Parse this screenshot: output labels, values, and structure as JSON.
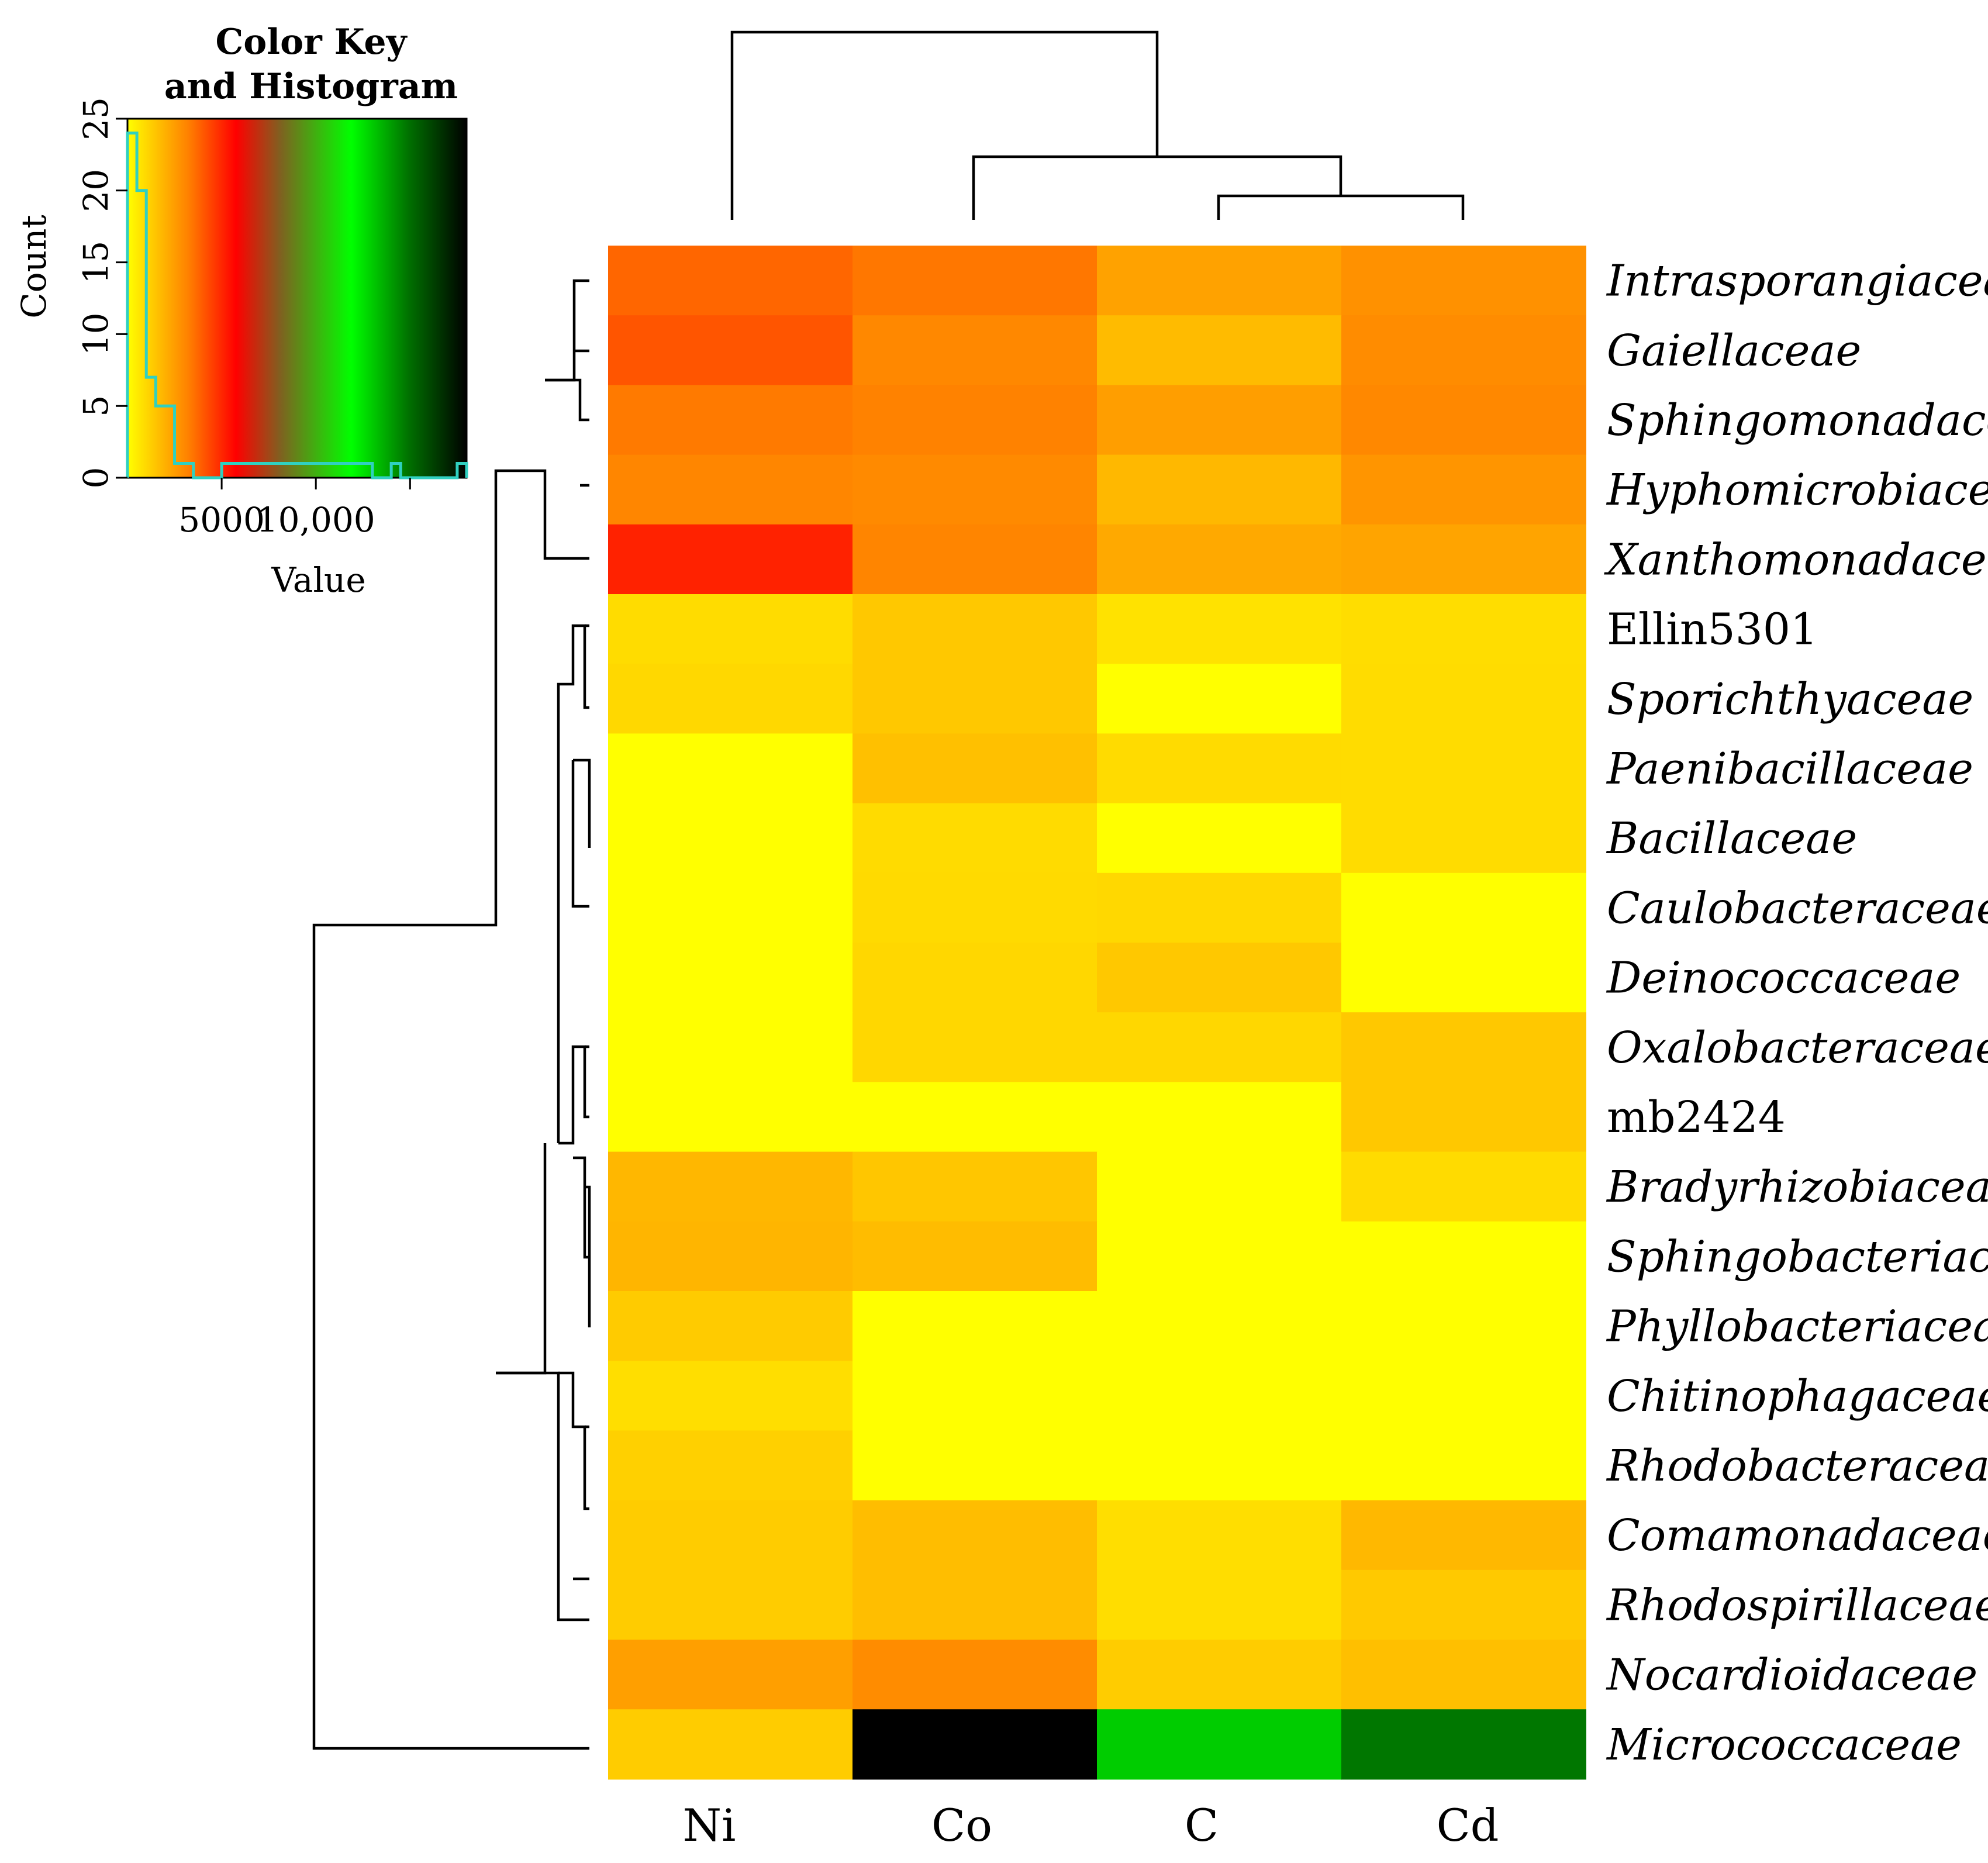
{
  "chart_data": {
    "type": "heatmap",
    "columns": [
      "Ni",
      "Co",
      "C",
      "Cd"
    ],
    "rows": [
      {
        "label": "Intrasporangiaceae",
        "italic": true,
        "colors": [
          "#ff6600",
          "#ff7700",
          "#ffa200",
          "#ff9100"
        ]
      },
      {
        "label": "Gaiellaceae",
        "italic": true,
        "colors": [
          "#ff5500",
          "#ff8800",
          "#ffbb00",
          "#ff8c00"
        ]
      },
      {
        "label": "Sphingomonadaceae",
        "italic": true,
        "colors": [
          "#ff7a00",
          "#ff8200",
          "#ff9e00",
          "#ff8800"
        ]
      },
      {
        "label": "Hyphomicrobiaceae",
        "italic": true,
        "colors": [
          "#ff8600",
          "#ff8a00",
          "#ffb800",
          "#ff9500"
        ]
      },
      {
        "label": "Xanthomonadaceae",
        "italic": true,
        "colors": [
          "#ff2200",
          "#ff8500",
          "#ffa900",
          "#ffa400"
        ]
      },
      {
        "label": "Ellin5301",
        "italic": false,
        "colors": [
          "#ffdc00",
          "#ffc800",
          "#ffe200",
          "#ffdd00"
        ]
      },
      {
        "label": "Sporichthyaceae",
        "italic": true,
        "colors": [
          "#ffd800",
          "#ffc800",
          "#ffff00",
          "#ffdc00"
        ]
      },
      {
        "label": "Paenibacillaceae",
        "italic": true,
        "colors": [
          "#ffff00",
          "#ffc000",
          "#ffdb00",
          "#ffdc00"
        ]
      },
      {
        "label": "Bacillaceae",
        "italic": true,
        "colors": [
          "#ffff00",
          "#ffdb00",
          "#ffff00",
          "#ffdc00"
        ]
      },
      {
        "label": "Caulobacteraceae",
        "italic": true,
        "colors": [
          "#ffff00",
          "#ffda00",
          "#ffd800",
          "#ffff00"
        ]
      },
      {
        "label": "Deinococcaceae",
        "italic": true,
        "colors": [
          "#ffff00",
          "#ffd700",
          "#ffc800",
          "#ffff00"
        ]
      },
      {
        "label": "Oxalobacteraceae",
        "italic": true,
        "colors": [
          "#ffff00",
          "#ffd700",
          "#ffd700",
          "#ffc800"
        ]
      },
      {
        "label": "mb2424",
        "italic": false,
        "colors": [
          "#ffff00",
          "#ffff00",
          "#ffff00",
          "#ffc800"
        ]
      },
      {
        "label": "Bradyrhizobiaceae",
        "italic": true,
        "colors": [
          "#ffb700",
          "#ffc600",
          "#ffff00",
          "#ffdb00"
        ]
      },
      {
        "label": "Sphingobacteriaceae",
        "italic": true,
        "colors": [
          "#ffb500",
          "#ffbc00",
          "#ffff00",
          "#ffff00"
        ]
      },
      {
        "label": "Phyllobacteriaceae",
        "italic": true,
        "colors": [
          "#ffcb00",
          "#ffff00",
          "#ffff00",
          "#ffff00"
        ]
      },
      {
        "label": "Chitinophagaceae",
        "italic": true,
        "colors": [
          "#ffde00",
          "#ffff00",
          "#ffff00",
          "#ffff00"
        ]
      },
      {
        "label": "Rhodobacteraceae",
        "italic": true,
        "colors": [
          "#ffd000",
          "#ffff00",
          "#ffff00",
          "#ffff00"
        ]
      },
      {
        "label": "Comamonadaceae",
        "italic": true,
        "colors": [
          "#ffcc00",
          "#ffbd00",
          "#ffde00",
          "#ffb800"
        ]
      },
      {
        "label": "Rhodospirillaceae",
        "italic": true,
        "colors": [
          "#ffcc00",
          "#ffbe00",
          "#ffdd00",
          "#ffc900"
        ]
      },
      {
        "label": "Nocardioidaceae",
        "italic": true,
        "colors": [
          "#ff9f00",
          "#ff8c00",
          "#ffcc00",
          "#ffbf00"
        ]
      },
      {
        "label": "Micrococcaceae",
        "italic": true,
        "colors": [
          "#ffcc00",
          "#000000",
          "#00cc00",
          "#007700"
        ]
      }
    ],
    "color_key": {
      "title_line1": "Color Key",
      "title_line2": "and Histogram",
      "xlabel": "Value",
      "ylabel": "Count",
      "x_ticks": [
        5000,
        10000
      ],
      "x_tick_labels": [
        "5000",
        "10,000"
      ],
      "y_ticks": [
        0,
        5,
        10,
        15,
        20,
        25
      ],
      "y_tick_labels": [
        "0",
        "5",
        "10",
        "15",
        "20",
        "25"
      ],
      "xlim": [
        0,
        18000
      ],
      "ylim": [
        0,
        25
      ],
      "gradient_stops": [
        "#ffff00",
        "#ff8000",
        "#ff0000",
        "#806020",
        "#00ff00",
        "#007000",
        "#000000"
      ],
      "histogram_color": "#30d0c0",
      "histogram_bins": [
        0,
        500,
        1000,
        1500,
        2000,
        2500,
        3000,
        3500,
        4000,
        4500,
        5000,
        12000,
        13000,
        14000,
        14500,
        17500,
        18000
      ],
      "histogram_counts": [
        24,
        20,
        7,
        5,
        5,
        1,
        1,
        0,
        0,
        0,
        1,
        1,
        0,
        1,
        0,
        1
      ]
    },
    "column_dendrogram": "((Ni),((Co),(C,Cd)))",
    "row_dendrogram": "((top five families),(middle cluster),(Micrococcaceae))"
  }
}
